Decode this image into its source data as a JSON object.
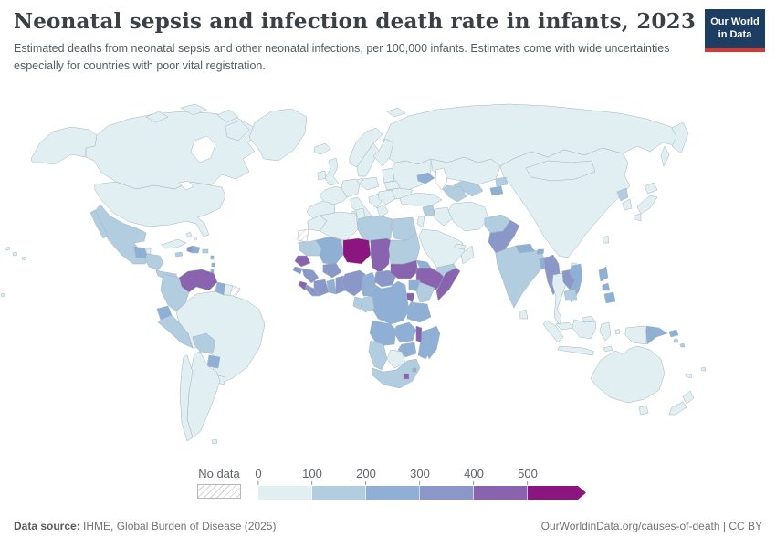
{
  "header": {
    "title": "Neonatal sepsis and infection death rate in infants, 2023",
    "subtitle": "Estimated deaths from neonatal sepsis and other neonatal infections, per 100,000 infants. Estimates come with wide uncertainties especially for countries with poor vital registration.",
    "logo": {
      "line1": "Our World",
      "line2": "in Data",
      "bg_color": "#1d3d63",
      "accent_color": "#d8392e"
    }
  },
  "legend": {
    "no_data_label": "No data",
    "ticks": [
      "0",
      "100",
      "200",
      "300",
      "400",
      "500"
    ]
  },
  "footer": {
    "source_label": "Data source:",
    "source_text": " IHME, Global Burden of Disease (2025)",
    "right_text": "OurWorldinData.org/causes-of-death | CC BY"
  },
  "chart_data": {
    "type": "choropleth_map",
    "title": "Neonatal sepsis and infection death rate in infants, 2023",
    "unit": "deaths per 100,000 infants",
    "year": "2023",
    "no_data_label": "No data",
    "legend_range": [
      0,
      500
    ],
    "bins": [
      {
        "range": "0-100",
        "color": "#e2eff2"
      },
      {
        "range": "100-200",
        "color": "#b3cde0"
      },
      {
        "range": "200-300",
        "color": "#8fb0d4"
      },
      {
        "range": "300-400",
        "color": "#8b96c9"
      },
      {
        "range": "400-500",
        "color": "#8a63ae"
      },
      {
        "range": "500+",
        "color": "#8b1680"
      }
    ],
    "regions": {
      "canada": {
        "name": "Canada",
        "bin": 0
      },
      "usa": {
        "name": "United States",
        "bin": 0
      },
      "greenland": {
        "name": "Greenland",
        "bin": 0
      },
      "iceland": {
        "name": "Iceland",
        "bin": 0
      },
      "mexico": {
        "name": "Mexico",
        "bin": 1
      },
      "guatemala": {
        "name": "Guatemala",
        "bin": 2
      },
      "belize": {
        "name": "Belize",
        "bin": 0
      },
      "honduras-nicaragua": {
        "name": "Honduras & Nicaragua",
        "bin": 1
      },
      "costa-rica-panama": {
        "name": "Costa Rica & Panama",
        "bin": 1
      },
      "cuba": {
        "name": "Cuba",
        "bin": 0
      },
      "jamaica": {
        "name": "Jamaica",
        "bin": 1
      },
      "haiti": {
        "name": "Haiti",
        "bin": 3
      },
      "dominican-republic": {
        "name": "Dominican Republic",
        "bin": 2
      },
      "puerto-rico": {
        "name": "Puerto Rico",
        "bin": 1
      },
      "bahamas": {
        "name": "Bahamas",
        "bin": 0
      },
      "lesser-antilles": {
        "name": "Lesser Antilles",
        "bin": 2
      },
      "trinidad-tobago": {
        "name": "Trinidad & Tobago",
        "bin": 2
      },
      "venezuela": {
        "name": "Venezuela",
        "bin": 4
      },
      "colombia": {
        "name": "Colombia",
        "bin": 1
      },
      "guyana": {
        "name": "Guyana",
        "bin": 2
      },
      "suriname": {
        "name": "Suriname",
        "bin": 0
      },
      "french-guiana": {
        "name": "French Guiana",
        "bin": "no_data"
      },
      "ecuador": {
        "name": "Ecuador",
        "bin": 2
      },
      "peru": {
        "name": "Peru",
        "bin": 1
      },
      "brazil": {
        "name": "Brazil",
        "bin": 0
      },
      "bolivia": {
        "name": "Bolivia",
        "bin": 1
      },
      "paraguay": {
        "name": "Paraguay",
        "bin": 2
      },
      "uruguay": {
        "name": "Uruguay",
        "bin": 0
      },
      "argentina": {
        "name": "Argentina",
        "bin": 0
      },
      "chile": {
        "name": "Chile",
        "bin": 0
      },
      "falkland-islands": {
        "name": "Falkland Islands",
        "bin": 0
      },
      "ireland": {
        "name": "Ireland",
        "bin": 0
      },
      "united-kingdom": {
        "name": "United Kingdom",
        "bin": 0
      },
      "norway": {
        "name": "Norway",
        "bin": 0
      },
      "sweden": {
        "name": "Sweden",
        "bin": 0
      },
      "finland": {
        "name": "Finland",
        "bin": 0
      },
      "denmark": {
        "name": "Denmark",
        "bin": 0
      },
      "baltic-states": {
        "name": "Baltic states",
        "bin": 0
      },
      "belarus": {
        "name": "Belarus",
        "bin": 0
      },
      "ukraine": {
        "name": "Ukraine",
        "bin": 0
      },
      "poland": {
        "name": "Poland",
        "bin": 0
      },
      "germany": {
        "name": "Germany",
        "bin": 0
      },
      "france": {
        "name": "France",
        "bin": 0
      },
      "iberia": {
        "name": "Spain & Portugal",
        "bin": 0
      },
      "italy": {
        "name": "Italy",
        "bin": 0
      },
      "balkans": {
        "name": "Balkans",
        "bin": 0
      },
      "greece": {
        "name": "Greece",
        "bin": 0
      },
      "romania-bulgaria": {
        "name": "Romania & Bulgaria",
        "bin": 0
      },
      "russia": {
        "name": "Russia",
        "bin": 0
      },
      "kazakhstan": {
        "name": "Kazakhstan",
        "bin": 0
      },
      "uzbekistan": {
        "name": "Uzbekistan",
        "bin": 1
      },
      "turkmenistan": {
        "name": "Turkmenistan",
        "bin": 1
      },
      "kyrgyzstan": {
        "name": "Kyrgyzstan",
        "bin": 1
      },
      "tajikistan": {
        "name": "Tajikistan",
        "bin": 2
      },
      "caucasus": {
        "name": "Caucasus",
        "bin": 2
      },
      "turkey": {
        "name": "Turkey",
        "bin": 0
      },
      "syria": {
        "name": "Syria",
        "bin": 1
      },
      "levant": {
        "name": "Israel & Jordan",
        "bin": 0
      },
      "iraq": {
        "name": "Iraq",
        "bin": 0
      },
      "iran": {
        "name": "Iran",
        "bin": 0
      },
      "saudi-arabia": {
        "name": "Saudi Arabia",
        "bin": 0
      },
      "yemen": {
        "name": "Yemen",
        "bin": 1
      },
      "oman": {
        "name": "Oman",
        "bin": 0
      },
      "gulf-states": {
        "name": "Gulf states",
        "bin": 0
      },
      "afghanistan": {
        "name": "Afghanistan",
        "bin": 1
      },
      "pakistan": {
        "name": "Pakistan",
        "bin": 3
      },
      "india": {
        "name": "India",
        "bin": 1
      },
      "nepal": {
        "name": "Nepal",
        "bin": 2
      },
      "bhutan": {
        "name": "Bhutan",
        "bin": 2
      },
      "bangladesh": {
        "name": "Bangladesh",
        "bin": 2
      },
      "sri-lanka": {
        "name": "Sri Lanka",
        "bin": 0
      },
      "china": {
        "name": "China",
        "bin": 0
      },
      "mongolia": {
        "name": "Mongolia",
        "bin": 0
      },
      "north-korea": {
        "name": "North Korea",
        "bin": 1
      },
      "south-korea": {
        "name": "South Korea",
        "bin": 0
      },
      "japan": {
        "name": "Japan",
        "bin": 0
      },
      "taiwan": {
        "name": "Taiwan",
        "bin": 0
      },
      "myanmar": {
        "name": "Myanmar",
        "bin": 3
      },
      "thailand": {
        "name": "Thailand",
        "bin": 0
      },
      "laos": {
        "name": "Laos",
        "bin": 3
      },
      "vietnam": {
        "name": "Vietnam",
        "bin": 2
      },
      "cambodia": {
        "name": "Cambodia",
        "bin": 1
      },
      "malaysia": {
        "name": "Malaysia",
        "bin": 0
      },
      "indonesia": {
        "name": "Indonesia",
        "bin": 0
      },
      "papua-new-guinea": {
        "name": "Papua New Guinea",
        "bin": 2
      },
      "philippines": {
        "name": "Philippines",
        "bin": 2
      },
      "solomon-islands": {
        "name": "Solomon Islands",
        "bin": 1
      },
      "fiji": {
        "name": "Fiji",
        "bin": 0
      },
      "new-caledonia": {
        "name": "New Caledonia",
        "bin": 0
      },
      "australia": {
        "name": "Australia",
        "bin": 0
      },
      "new-zealand": {
        "name": "New Zealand",
        "bin": 0
      },
      "pacific-islands": {
        "name": "Pacific islands",
        "bin": 0
      },
      "arctic-islands": {
        "name": "Arctic islands",
        "bin": 0
      },
      "morocco": {
        "name": "Morocco",
        "bin": 0
      },
      "western-sahara": {
        "name": "Western Sahara",
        "bin": "no_data"
      },
      "algeria": {
        "name": "Algeria",
        "bin": 0
      },
      "tunisia": {
        "name": "Tunisia",
        "bin": 0
      },
      "libya": {
        "name": "Libya",
        "bin": 1
      },
      "egypt": {
        "name": "Egypt",
        "bin": 1
      },
      "mauritania": {
        "name": "Mauritania",
        "bin": 1
      },
      "mali": {
        "name": "Mali",
        "bin": 2
      },
      "niger": {
        "name": "Niger",
        "bin": 5
      },
      "chad": {
        "name": "Chad",
        "bin": 4
      },
      "sudan": {
        "name": "Sudan",
        "bin": 1
      },
      "eritrea": {
        "name": "Eritrea & Djibouti",
        "bin": 2
      },
      "senegal": {
        "name": "Senegal & Gambia",
        "bin": 4
      },
      "guinea-bissau": {
        "name": "Guinea-Bissau",
        "bin": 3
      },
      "guinea": {
        "name": "Guinea",
        "bin": 3
      },
      "sierra-leone": {
        "name": "Sierra Leone",
        "bin": 4
      },
      "liberia": {
        "name": "Liberia",
        "bin": 3
      },
      "cote-divoire": {
        "name": "Côte d'Ivoire",
        "bin": 3
      },
      "ghana": {
        "name": "Ghana",
        "bin": 2
      },
      "benin-togo": {
        "name": "Benin & Togo",
        "bin": 3
      },
      "burkina-faso": {
        "name": "Burkina Faso",
        "bin": 3
      },
      "nigeria": {
        "name": "Nigeria",
        "bin": 3
      },
      "cameroon": {
        "name": "Cameroon",
        "bin": 2
      },
      "central-african-republic": {
        "name": "Central African Republic",
        "bin": 3
      },
      "south-sudan": {
        "name": "South Sudan",
        "bin": 4
      },
      "ethiopia": {
        "name": "Ethiopia",
        "bin": 4
      },
      "somalia": {
        "name": "Somalia",
        "bin": 4
      },
      "uganda": {
        "name": "Uganda",
        "bin": 2
      },
      "kenya": {
        "name": "Kenya",
        "bin": 1
      },
      "rwanda-burundi": {
        "name": "Rwanda & Burundi",
        "bin": 4
      },
      "drc": {
        "name": "Democratic Republic of Congo",
        "bin": 2
      },
      "congo-gabon": {
        "name": "Congo & Gabon",
        "bin": 1
      },
      "tanzania": {
        "name": "Tanzania",
        "bin": 2
      },
      "angola": {
        "name": "Angola",
        "bin": 2
      },
      "zambia": {
        "name": "Zambia",
        "bin": 2
      },
      "malawi": {
        "name": "Malawi",
        "bin": 4
      },
      "mozambique": {
        "name": "Mozambique",
        "bin": 2
      },
      "zimbabwe": {
        "name": "Zimbabwe",
        "bin": 2
      },
      "botswana": {
        "name": "Botswana",
        "bin": 0
      },
      "namibia": {
        "name": "Namibia",
        "bin": 1
      },
      "south-africa": {
        "name": "South Africa",
        "bin": 1
      },
      "lesotho": {
        "name": "Lesotho",
        "bin": 4
      },
      "eswatini": {
        "name": "Eswatini",
        "bin": 2
      },
      "madagascar": {
        "name": "Madagascar",
        "bin": 2
      }
    }
  }
}
